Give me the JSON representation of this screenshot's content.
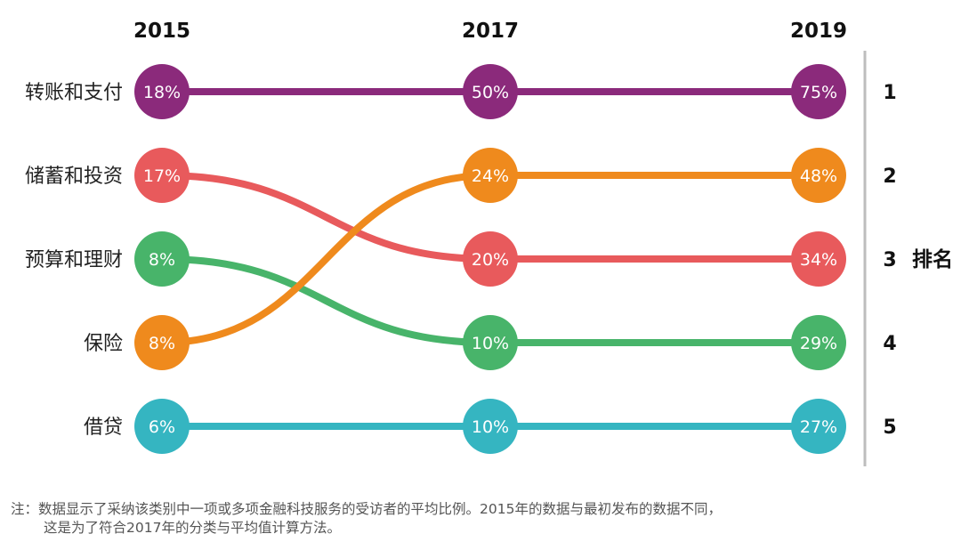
{
  "chart_data": {
    "type": "line",
    "subtype": "bump-chart",
    "x": [
      "2015",
      "2017",
      "2019"
    ],
    "series": [
      {
        "name": "转账和支付",
        "values": [
          18,
          50,
          75
        ],
        "ranks": [
          1,
          1,
          1
        ],
        "color": "#8b2a7b"
      },
      {
        "name": "储蓄和投资",
        "values": [
          17,
          20,
          34
        ],
        "ranks": [
          2,
          3,
          3
        ],
        "color": "#e85a5c"
      },
      {
        "name": "预算和理财",
        "values": [
          8,
          10,
          29
        ],
        "ranks": [
          3,
          4,
          4
        ],
        "color": "#48b46a"
      },
      {
        "name": "保险",
        "values": [
          8,
          24,
          48
        ],
        "ranks": [
          4,
          2,
          2
        ],
        "color": "#ef8a1d"
      },
      {
        "name": "借贷",
        "values": [
          6,
          10,
          27
        ],
        "ranks": [
          5,
          5,
          5
        ],
        "color": "#35b5c1"
      }
    ],
    "value_suffix": "%",
    "rank_axis": {
      "label": "排名",
      "ticks": [
        "1",
        "2",
        "3",
        "4",
        "5"
      ]
    }
  },
  "note": {
    "line1": "注：数据显示了采纳该类别中一项或多项金融科技服务的受访者的平均比例。2015年的数据与最初发布的数据不同，",
    "line2": "这是为了符合2017年的分类与平均值计算方法。"
  }
}
